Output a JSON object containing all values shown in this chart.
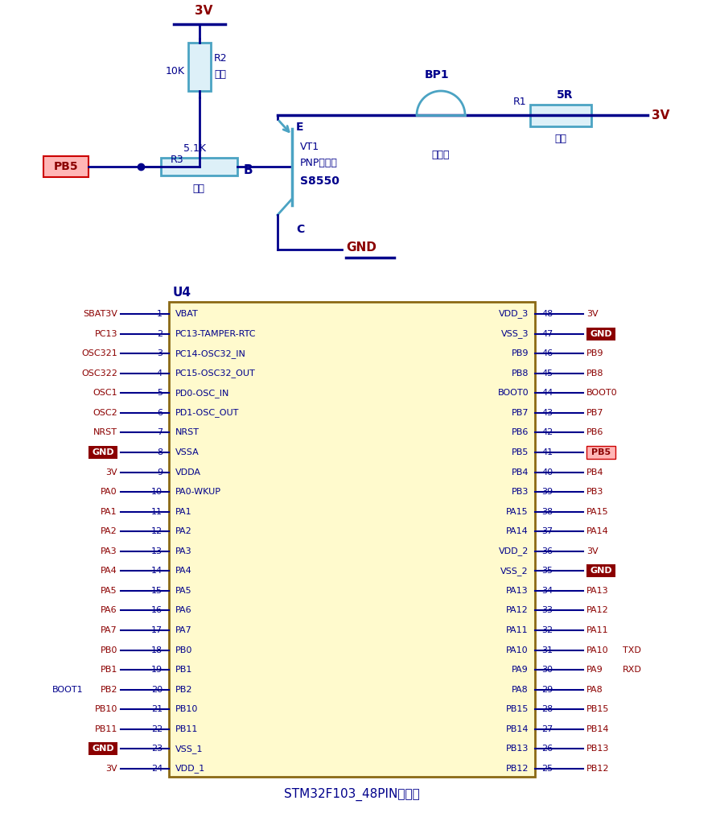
{
  "bg_color": "#ffffff",
  "line_color": "#00008B",
  "circuit_color": "#4BA3C3",
  "text_blue": "#00008B",
  "text_red": "#8B0000",
  "chip_fill": "#FFFACD",
  "chip_border": "#8B0000",
  "pb5_bg": "#FFB6B6",
  "pb5_border": "#cc0000",
  "gnd_bg": "#8B0000",
  "left_pins": [
    [
      "SBAT3V",
      "1",
      "VBAT"
    ],
    [
      "PC13",
      "2",
      "PC13-TAMPER-RTC"
    ],
    [
      "OSC321",
      "3",
      "PC14-OSC32_IN"
    ],
    [
      "OSC322",
      "4",
      "PC15-OSC32_OUT"
    ],
    [
      "OSC1",
      "5",
      "PD0-OSC_IN"
    ],
    [
      "OSC2",
      "6",
      "PD1-OSC_OUT"
    ],
    [
      "NRST",
      "7",
      "NRST"
    ],
    [
      "GND",
      "8",
      "VSSA"
    ],
    [
      "3V",
      "9",
      "VDDA"
    ],
    [
      "PA0",
      "10",
      "PA0-WKUP"
    ],
    [
      "PA1",
      "11",
      "PA1"
    ],
    [
      "PA2",
      "12",
      "PA2"
    ],
    [
      "PA3",
      "13",
      "PA3"
    ],
    [
      "PA4",
      "14",
      "PA4"
    ],
    [
      "PA5",
      "15",
      "PA5"
    ],
    [
      "PA6",
      "16",
      "PA6"
    ],
    [
      "PA7",
      "17",
      "PA7"
    ],
    [
      "PB0",
      "18",
      "PB0"
    ],
    [
      "PB1",
      "19",
      "PB1"
    ],
    [
      "PB2",
      "20",
      "PB2"
    ],
    [
      "PB10",
      "21",
      "PB10"
    ],
    [
      "PB11",
      "22",
      "PB11"
    ],
    [
      "GND",
      "23",
      "VSS_1"
    ],
    [
      "3V",
      "24",
      "VDD_1"
    ]
  ],
  "right_pins": [
    [
      "VDD_3",
      "48",
      "3V"
    ],
    [
      "VSS_3",
      "47",
      "GND"
    ],
    [
      "PB9",
      "46",
      "PB9"
    ],
    [
      "PB8",
      "45",
      "PB8"
    ],
    [
      "BOOT0",
      "44",
      "BOOT0"
    ],
    [
      "PB7",
      "43",
      "PB7"
    ],
    [
      "PB6",
      "42",
      "PB6"
    ],
    [
      "PB5",
      "41",
      "PB5"
    ],
    [
      "PB4",
      "40",
      "PB4"
    ],
    [
      "PB3",
      "39",
      "PB3"
    ],
    [
      "PA15",
      "38",
      "PA15"
    ],
    [
      "PA14",
      "37",
      "PA14"
    ],
    [
      "VDD_2",
      "36",
      "3V"
    ],
    [
      "VSS_2",
      "35",
      "GND"
    ],
    [
      "PA13",
      "34",
      "PA13"
    ],
    [
      "PA12",
      "33",
      "PA12"
    ],
    [
      "PA11",
      "32",
      "PA11"
    ],
    [
      "PA10",
      "31",
      "PA10"
    ],
    [
      "PA9",
      "30",
      "PA9"
    ],
    [
      "PA8",
      "29",
      "PA8"
    ],
    [
      "PB15",
      "28",
      "PB15"
    ],
    [
      "PB14",
      "27",
      "PB14"
    ],
    [
      "PB13",
      "26",
      "PB13"
    ],
    [
      "PB12",
      "25",
      "PB12"
    ]
  ]
}
